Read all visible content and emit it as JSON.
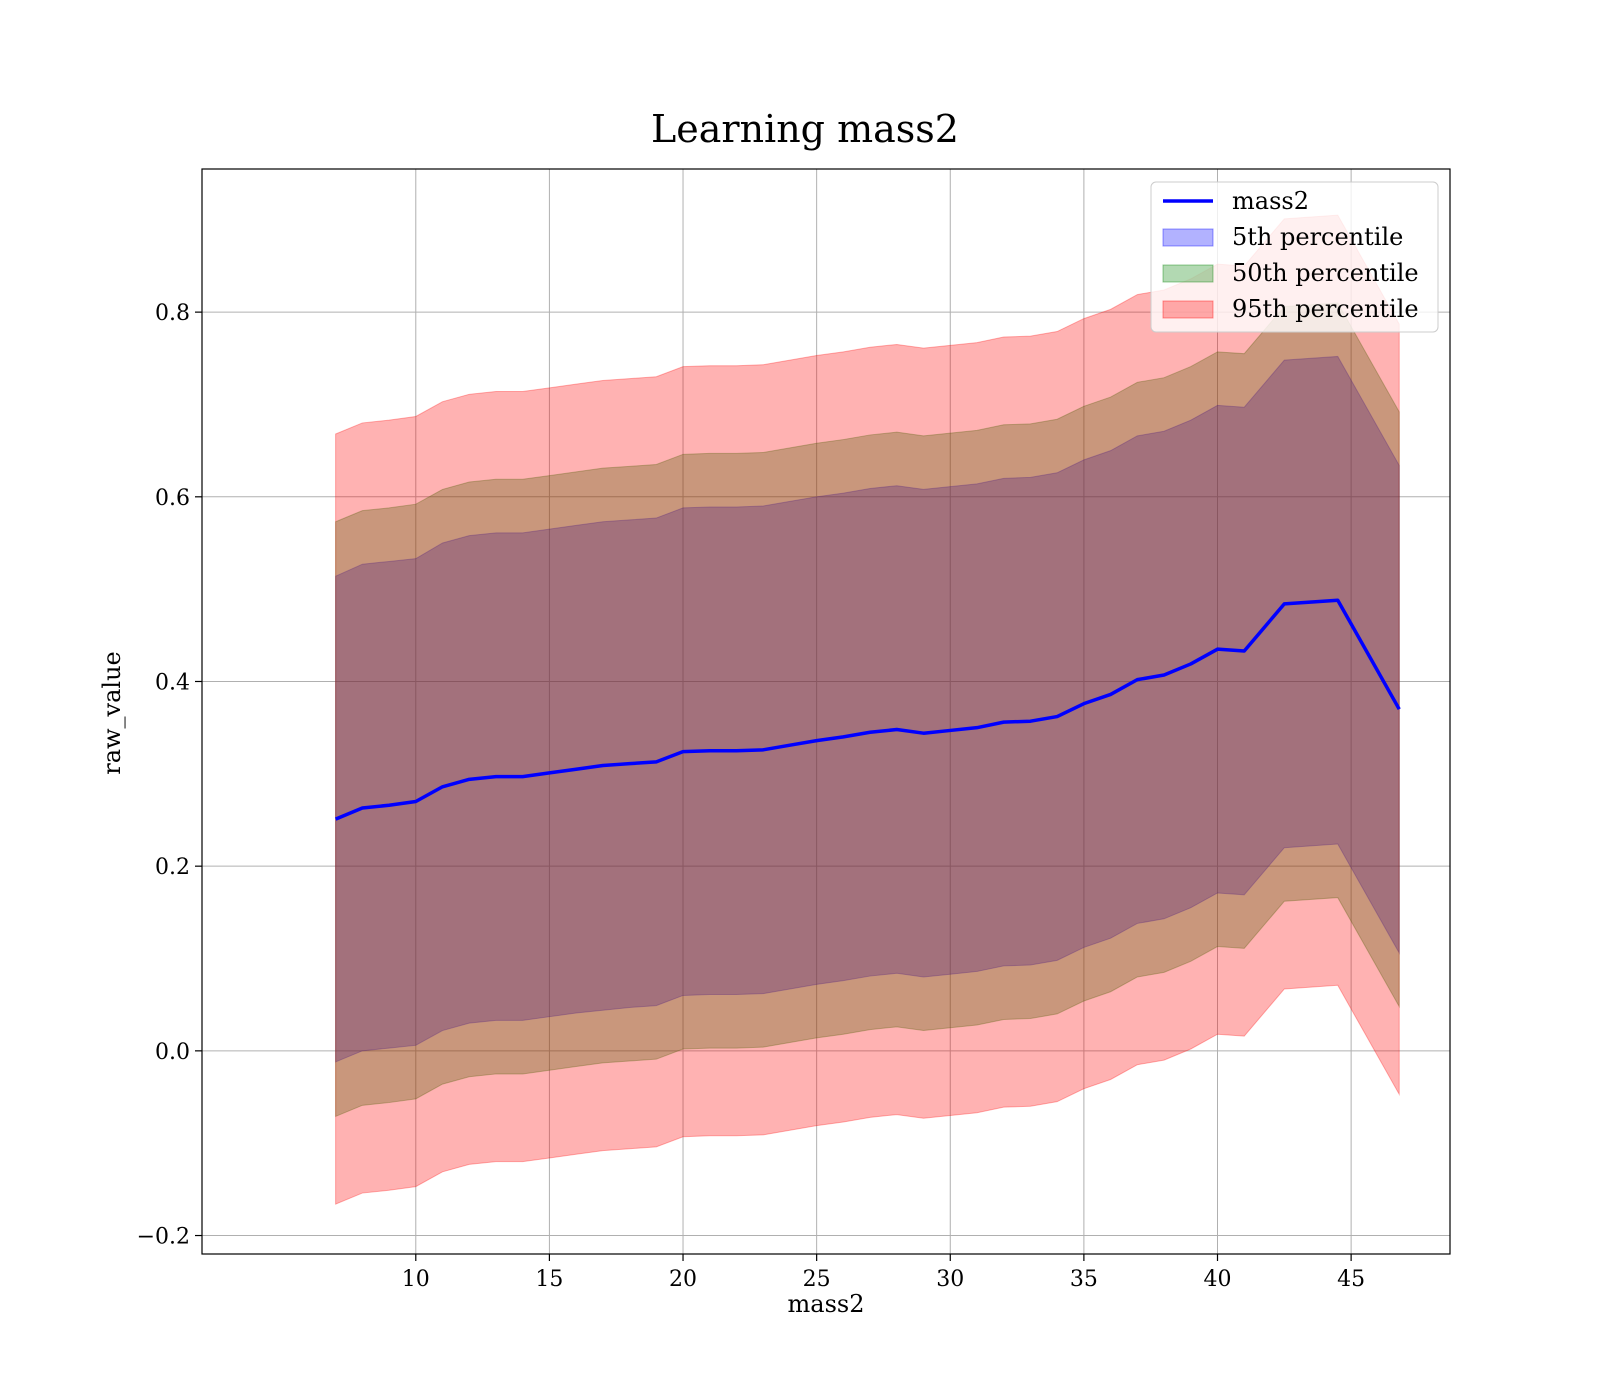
{
  "chart_data": {
    "type": "area",
    "title": "Learning mass2",
    "xlabel": "mass2",
    "ylabel": "raw_value",
    "xlim": [
      2,
      48.7
    ],
    "ylim": [
      -0.22,
      0.955
    ],
    "xticks": [
      10,
      15,
      20,
      25,
      30,
      35,
      40,
      45
    ],
    "yticks": [
      -0.2,
      0.0,
      0.2,
      0.4,
      0.6,
      0.8
    ],
    "xtick_labels": [
      "10",
      "15",
      "20",
      "25",
      "30",
      "35",
      "40",
      "45"
    ],
    "ytick_labels": [
      "−0.2",
      "0.0",
      "0.2",
      "0.4",
      "0.6",
      "0.8"
    ],
    "grid": true,
    "legend_position": "top-right",
    "x": [
      7,
      8,
      9,
      10,
      11,
      12,
      13,
      14,
      15,
      16,
      17,
      18,
      19,
      20,
      21,
      22,
      23,
      24,
      25,
      26,
      27,
      28,
      29,
      30,
      31,
      32,
      33,
      34,
      35,
      36,
      37,
      38,
      39,
      40,
      41,
      42.5,
      44.5,
      46.8
    ],
    "series": [
      {
        "name": "mass2",
        "kind": "line",
        "color": "#0000ff",
        "values": [
          0.251,
          0.263,
          0.266,
          0.27,
          0.286,
          0.294,
          0.297,
          0.297,
          0.301,
          0.305,
          0.309,
          0.311,
          0.313,
          0.324,
          0.325,
          0.325,
          0.326,
          0.331,
          0.336,
          0.34,
          0.345,
          0.348,
          0.344,
          0.347,
          0.35,
          0.356,
          0.357,
          0.362,
          0.376,
          0.386,
          0.402,
          0.407,
          0.419,
          0.435,
          0.433,
          0.484,
          0.488,
          0.37
        ]
      },
      {
        "name": "5th percentile",
        "kind": "band",
        "color": "#0000ff",
        "opacity": 0.3,
        "lower": [
          -0.012,
          0.0,
          0.003,
          0.006,
          0.022,
          0.03,
          0.033,
          0.033,
          0.037,
          0.041,
          0.044,
          0.047,
          0.049,
          0.06,
          0.061,
          0.061,
          0.062,
          0.067,
          0.072,
          0.076,
          0.081,
          0.084,
          0.08,
          0.083,
          0.086,
          0.092,
          0.093,
          0.098,
          0.112,
          0.122,
          0.138,
          0.143,
          0.155,
          0.171,
          0.169,
          0.22,
          0.224,
          0.106
        ],
        "upper": [
          0.514,
          0.527,
          0.53,
          0.533,
          0.55,
          0.558,
          0.561,
          0.561,
          0.565,
          0.569,
          0.573,
          0.575,
          0.577,
          0.588,
          0.589,
          0.589,
          0.59,
          0.595,
          0.6,
          0.604,
          0.609,
          0.612,
          0.608,
          0.611,
          0.614,
          0.62,
          0.621,
          0.626,
          0.64,
          0.65,
          0.666,
          0.671,
          0.683,
          0.699,
          0.697,
          0.748,
          0.752,
          0.634
        ]
      },
      {
        "name": "50th percentile",
        "kind": "band",
        "color": "#008000",
        "opacity": 0.3,
        "lower": [
          -0.071,
          -0.059,
          -0.056,
          -0.052,
          -0.036,
          -0.028,
          -0.025,
          -0.025,
          -0.021,
          -0.017,
          -0.013,
          -0.011,
          -0.009,
          0.002,
          0.003,
          0.003,
          0.004,
          0.009,
          0.014,
          0.018,
          0.023,
          0.026,
          0.022,
          0.025,
          0.028,
          0.034,
          0.035,
          0.04,
          0.054,
          0.064,
          0.08,
          0.085,
          0.097,
          0.113,
          0.111,
          0.162,
          0.166,
          0.048
        ],
        "upper": [
          0.573,
          0.585,
          0.588,
          0.592,
          0.608,
          0.616,
          0.619,
          0.619,
          0.623,
          0.627,
          0.631,
          0.633,
          0.635,
          0.646,
          0.647,
          0.647,
          0.648,
          0.653,
          0.658,
          0.662,
          0.667,
          0.67,
          0.666,
          0.669,
          0.672,
          0.678,
          0.679,
          0.684,
          0.698,
          0.708,
          0.724,
          0.729,
          0.741,
          0.757,
          0.755,
          0.806,
          0.81,
          0.692
        ]
      },
      {
        "name": "95th percentile",
        "kind": "band",
        "color": "#ff0000",
        "opacity": 0.3,
        "lower": [
          -0.166,
          -0.154,
          -0.151,
          -0.147,
          -0.131,
          -0.123,
          -0.12,
          -0.12,
          -0.116,
          -0.112,
          -0.108,
          -0.106,
          -0.104,
          -0.093,
          -0.092,
          -0.092,
          -0.091,
          -0.086,
          -0.081,
          -0.077,
          -0.072,
          -0.069,
          -0.073,
          -0.07,
          -0.067,
          -0.061,
          -0.06,
          -0.055,
          -0.041,
          -0.031,
          -0.015,
          -0.01,
          0.002,
          0.018,
          0.016,
          0.067,
          0.071,
          -0.047
        ],
        "upper": [
          0.668,
          0.68,
          0.683,
          0.687,
          0.703,
          0.711,
          0.714,
          0.714,
          0.718,
          0.722,
          0.726,
          0.728,
          0.73,
          0.741,
          0.742,
          0.742,
          0.743,
          0.748,
          0.753,
          0.757,
          0.762,
          0.765,
          0.761,
          0.764,
          0.767,
          0.773,
          0.774,
          0.779,
          0.793,
          0.803,
          0.819,
          0.824,
          0.836,
          0.852,
          0.85,
          0.901,
          0.905,
          0.787
        ]
      }
    ]
  }
}
